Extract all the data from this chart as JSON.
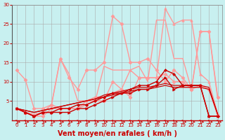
{
  "xlabel": "Vent moyen/en rafales ( km/h )",
  "background_color": "#c8f0f0",
  "grid_color": "#aaaaaa",
  "xlim": [
    -0.5,
    23.5
  ],
  "ylim": [
    0,
    30
  ],
  "yticks": [
    5,
    10,
    15,
    20,
    25,
    30
  ],
  "xticks": [
    0,
    1,
    2,
    3,
    4,
    5,
    6,
    7,
    8,
    9,
    10,
    11,
    12,
    13,
    14,
    15,
    16,
    17,
    18,
    19,
    20,
    21,
    22,
    23
  ],
  "series": [
    {
      "x": [
        0,
        1,
        2,
        3,
        4,
        5,
        6,
        7,
        8,
        9,
        10,
        11,
        12,
        13,
        14,
        15,
        16,
        17,
        18,
        19,
        20,
        21,
        22,
        23
      ],
      "y": [
        3,
        2,
        1,
        2,
        2,
        2,
        2,
        3,
        3,
        4,
        5,
        6,
        7,
        7,
        8,
        8,
        9,
        11,
        8,
        9,
        9,
        9,
        1,
        1
      ],
      "color": "#cc0000",
      "linewidth": 1.0,
      "marker": ">",
      "markersize": 2.5,
      "zorder": 6
    },
    {
      "x": [
        0,
        1,
        2,
        3,
        4,
        5,
        6,
        7,
        8,
        9,
        10,
        11,
        12,
        13,
        14,
        15,
        16,
        17,
        18,
        19,
        20,
        21,
        22,
        23
      ],
      "y": [
        3,
        2,
        1,
        2,
        2,
        3,
        3,
        4,
        4,
        5,
        6,
        7,
        7,
        8,
        9,
        9,
        10,
        13,
        12,
        9,
        9,
        9,
        1,
        1
      ],
      "color": "#cc0000",
      "linewidth": 1.0,
      "marker": "D",
      "markersize": 2.0,
      "zorder": 6
    },
    {
      "x": [
        0,
        1,
        2,
        3,
        4,
        5,
        6,
        7,
        8,
        9,
        10,
        11,
        12,
        13,
        14,
        15,
        16,
        17,
        18,
        19,
        20,
        21,
        22,
        23
      ],
      "y": [
        3,
        2.5,
        2,
        2.5,
        3,
        3.5,
        4,
        4.5,
        5,
        5.5,
        6,
        6.5,
        7,
        7.5,
        8,
        8,
        8.5,
        9,
        8.5,
        8.5,
        8.5,
        8.5,
        8,
        1.5
      ],
      "color": "#cc0000",
      "linewidth": 0.9,
      "marker": null,
      "markersize": 0,
      "zorder": 5
    },
    {
      "x": [
        0,
        1,
        2,
        3,
        4,
        5,
        6,
        7,
        8,
        9,
        10,
        11,
        12,
        13,
        14,
        15,
        16,
        17,
        18,
        19,
        20,
        21,
        22,
        23
      ],
      "y": [
        3,
        2.5,
        2,
        2.5,
        3,
        3.5,
        4,
        4.5,
        5,
        5.5,
        6.5,
        7,
        7.5,
        8,
        8.5,
        8.5,
        9,
        9.5,
        9,
        9,
        9,
        9,
        8.5,
        1.5
      ],
      "color": "#cc0000",
      "linewidth": 0.9,
      "marker": null,
      "markersize": 0,
      "zorder": 5
    },
    {
      "x": [
        0,
        1,
        2,
        3,
        4,
        5,
        6,
        7,
        8,
        9,
        10,
        11,
        12,
        13,
        14,
        15,
        16,
        17,
        18,
        19,
        20,
        21,
        22,
        23
      ],
      "y": [
        13,
        10.5,
        3,
        3,
        4,
        16,
        11,
        8,
        13,
        13,
        15,
        27,
        25,
        15,
        15,
        16,
        13,
        10,
        13,
        11,
        8,
        23,
        23,
        6
      ],
      "color": "#ff9999",
      "linewidth": 1.0,
      "marker": "D",
      "markersize": 2.5,
      "zorder": 3
    },
    {
      "x": [
        0,
        1,
        2,
        3,
        4,
        5,
        6,
        7,
        8,
        9,
        10,
        11,
        12,
        13,
        14,
        15,
        16,
        17,
        18,
        19,
        20,
        21,
        22,
        23
      ],
      "y": [
        3,
        2,
        1,
        2,
        4,
        3,
        3,
        3,
        5,
        6,
        6,
        7,
        8,
        13,
        11,
        11,
        11,
        29,
        25,
        26,
        26,
        12,
        10,
        1.5
      ],
      "color": "#ff9999",
      "linewidth": 1.0,
      "marker": "^",
      "markersize": 2.5,
      "zorder": 3
    },
    {
      "x": [
        0,
        1,
        2,
        3,
        4,
        5,
        6,
        7,
        8,
        9,
        10,
        11,
        12,
        13,
        14,
        15,
        16,
        17,
        18,
        19,
        20,
        21,
        22,
        23
      ],
      "y": [
        3,
        2,
        1,
        1,
        3,
        3,
        3,
        3,
        4,
        5,
        5,
        10,
        8,
        6,
        11,
        11,
        11,
        12,
        10,
        10,
        8,
        9,
        8,
        1
      ],
      "color": "#ff9999",
      "linewidth": 1.0,
      "marker": "D",
      "markersize": 2.5,
      "zorder": 3
    },
    {
      "x": [
        0,
        1,
        2,
        3,
        4,
        5,
        6,
        7,
        8,
        9,
        10,
        11,
        12,
        13,
        14,
        15,
        16,
        17,
        18,
        19,
        20,
        21,
        22,
        23
      ],
      "y": [
        3,
        2,
        1.5,
        2,
        4,
        16,
        12,
        5,
        5,
        5,
        14,
        13,
        13,
        13,
        14,
        10,
        26,
        26,
        16,
        16,
        8,
        23,
        23,
        5.5
      ],
      "color": "#ff9999",
      "linewidth": 1.0,
      "marker": null,
      "markersize": 0,
      "zorder": 2
    }
  ],
  "arrow_color": "#cc0000",
  "xlabel_color": "#cc0000",
  "xlabel_fontsize": 7,
  "tick_labelsize": 5,
  "tick_color": "#cc0000"
}
